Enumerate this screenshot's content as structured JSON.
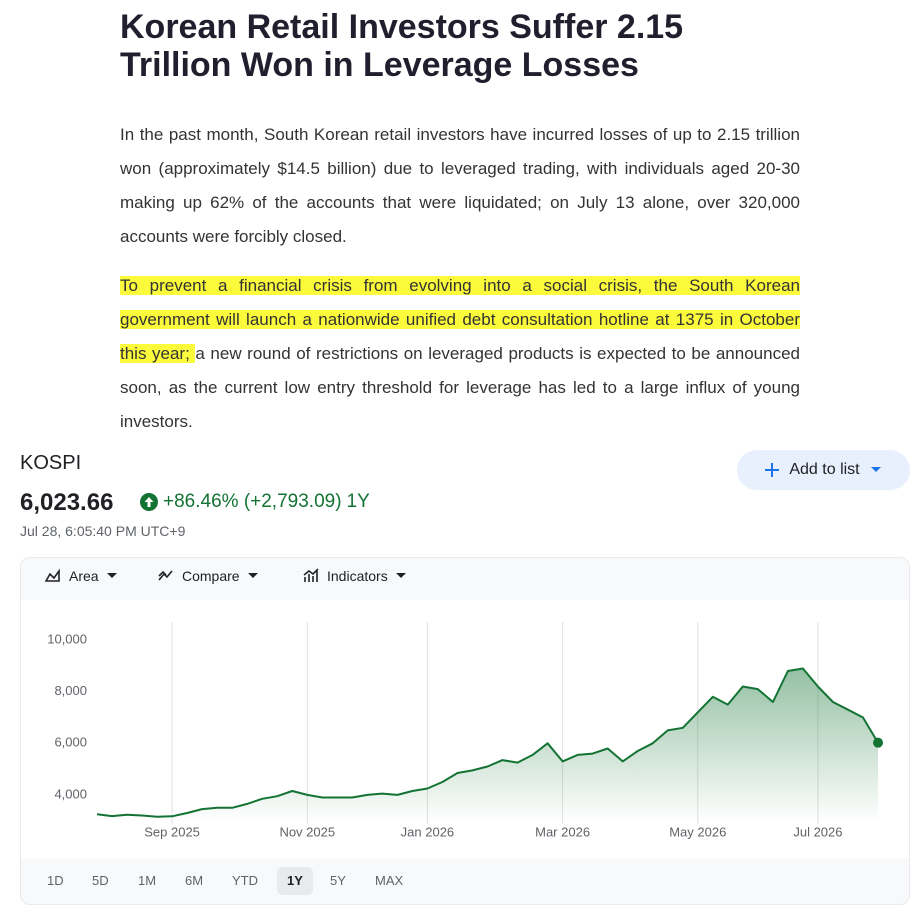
{
  "article": {
    "title": "Korean Retail Investors Suffer 2.15 Trillion Won in Leverage Losses",
    "paragraph_1": "In the past month, South Korean retail investors have incurred losses of up to 2.15 trillion won (approximately $14.5 billion) due to leveraged trading, with individuals aged 20-30 making up 62% of the accounts that were liquidated; on July 13 alone, over 320,000 accounts were forcibly closed.",
    "paragraph_2": {
      "highlighted": "To prevent a financial crisis from evolving into a social crisis, the South Korean government will launch a nationwide unified debt consultation hotline at 1375 in October this year; ",
      "rest": "a new round of restrictions on leveraged products is expected to be announced soon, as the current low entry threshold for leverage has led to a large influx of young investors."
    }
  },
  "quote": {
    "name": "KOSPI",
    "price": "6,023.66",
    "change": "+86.46% (+2,793.09)",
    "period": "1Y",
    "timestamp": "Jul 28, 6:05:40 PM UTC+9",
    "add_button": "Add to list"
  },
  "toolbar": [
    "Area",
    "Compare",
    "Indicators"
  ],
  "ranges": [
    "1D",
    "5D",
    "1M",
    "6M",
    "YTD",
    "1Y",
    "5Y",
    "MAX"
  ],
  "selected_range": "1Y",
  "chart_data": {
    "type": "area",
    "color": "#137333",
    "x_grid": true,
    "categories": [
      null,
      null,
      null,
      null,
      null,
      "Sep 2025",
      null,
      null,
      null,
      null,
      null,
      null,
      null,
      null,
      "Nov 2025",
      null,
      null,
      null,
      null,
      null,
      null,
      null,
      "Jan 2026",
      null,
      null,
      null,
      null,
      null,
      null,
      null,
      null,
      "Mar 2026",
      null,
      null,
      null,
      null,
      null,
      null,
      null,
      null,
      "May 2026",
      null,
      null,
      null,
      null,
      null,
      null,
      null,
      "Jul 2026",
      null,
      null,
      null,
      null
    ],
    "values": [
      3250,
      3180,
      3230,
      3200,
      3150,
      3170,
      3300,
      3450,
      3500,
      3500,
      3650,
      3850,
      3950,
      4150,
      4000,
      3900,
      3900,
      3900,
      4000,
      4050,
      4000,
      4150,
      4250,
      4500,
      4850,
      4950,
      5100,
      5350,
      5250,
      5550,
      6000,
      5300,
      5550,
      5600,
      5800,
      5300,
      5700,
      6000,
      6500,
      6600,
      7200,
      7800,
      7500,
      8200,
      8100,
      7600,
      8800,
      8900,
      8200,
      7600,
      7300,
      7000,
      6023.66
    ],
    "ylim": [
      2950,
      10700
    ],
    "yticks": [
      {
        "value": 4000,
        "label": "4,000"
      },
      {
        "value": 6000,
        "label": "6,000"
      },
      {
        "value": 8000,
        "label": "8,000"
      },
      {
        "value": 10000,
        "label": "10,000"
      }
    ]
  }
}
